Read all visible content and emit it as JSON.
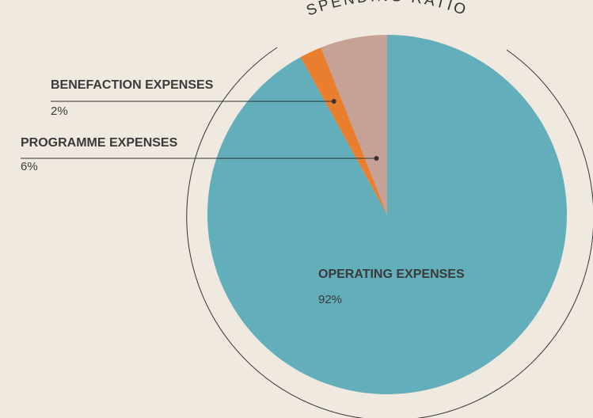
{
  "chart_data": {
    "type": "pie",
    "title": "SPENDING RATIO",
    "categories": [
      "OPERATING EXPENSES",
      "BENEFACTION EXPENSES",
      "PROGRAMME EXPENSES"
    ],
    "values": [
      92,
      2,
      6
    ],
    "value_labels": [
      "92%",
      "2%",
      "6%"
    ],
    "colors": [
      "#62aebb",
      "#e97e2e",
      "#c6a296"
    ]
  }
}
